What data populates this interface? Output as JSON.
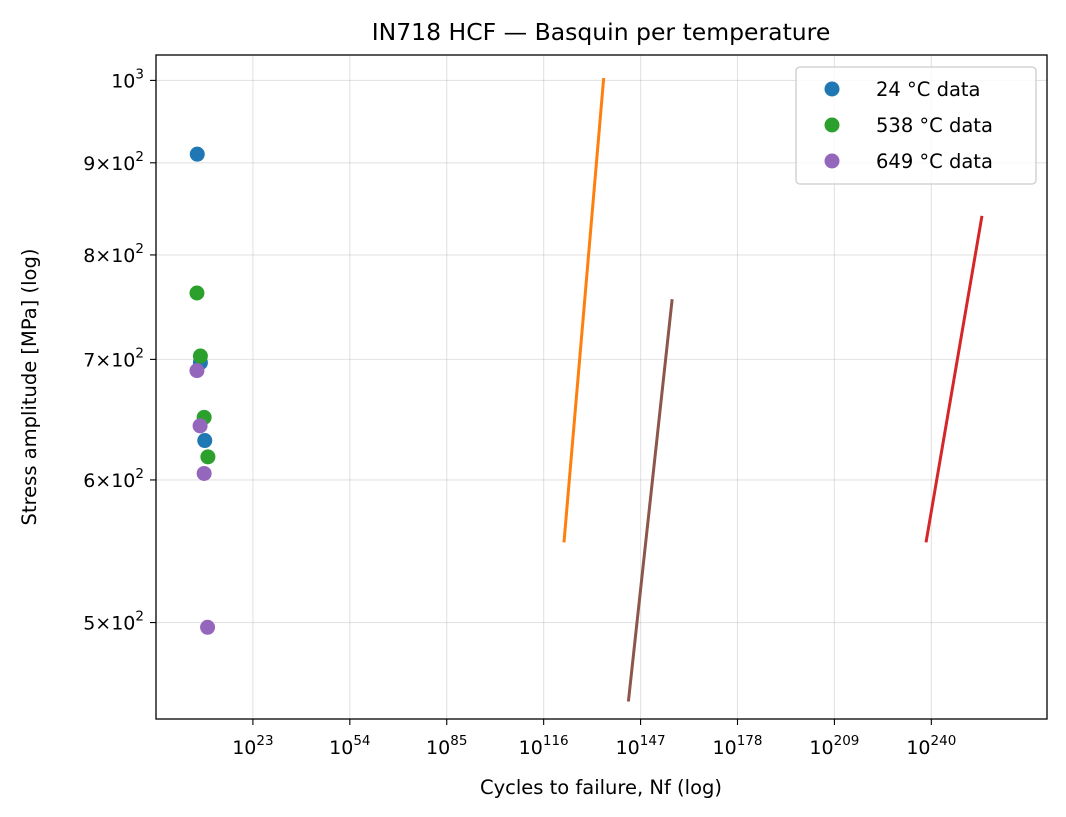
{
  "chart_data": {
    "type": "scatter",
    "title": "IN718 HCF — Basquin per temperature",
    "xlabel": "Cycles to failure, Nf (log)",
    "ylabel": "Stress amplitude [MPa] (log)",
    "x_scale": "log",
    "y_scale": "log",
    "xlim_log10": [
      -8,
      277
    ],
    "ylim": [
      442,
      1033
    ],
    "grid": true,
    "legend_position": "top-right",
    "x_tick_exponents": [
      "23",
      "54",
      "85",
      "116",
      "147",
      "178",
      "209",
      "240"
    ],
    "x_tick_base": "10",
    "y_ticks": [
      {
        "value": 500,
        "mantissa": "5",
        "exponent": "2"
      },
      {
        "value": 600,
        "mantissa": "6",
        "exponent": "2"
      },
      {
        "value": 700,
        "mantissa": "7",
        "exponent": "2"
      },
      {
        "value": 800,
        "mantissa": "8",
        "exponent": "2"
      },
      {
        "value": 900,
        "mantissa": "9",
        "exponent": "2"
      },
      {
        "value": 1000,
        "mantissa": "",
        "exponent": "3"
      }
    ],
    "series": [
      {
        "name": "24 °C data",
        "kind": "points",
        "color": "#1f77b4",
        "points": [
          [
            5.2,
            910
          ],
          [
            6.2,
            697
          ],
          [
            7.6,
            631
          ]
        ]
      },
      {
        "name": "538 °C data",
        "kind": "points",
        "color": "#2ca02c",
        "points": [
          [
            5.1,
            762
          ],
          [
            6.2,
            703
          ],
          [
            7.4,
            650
          ],
          [
            8.6,
            618
          ]
        ]
      },
      {
        "name": "649 °C data",
        "kind": "points",
        "color": "#9467bd",
        "points": [
          [
            5.1,
            690
          ],
          [
            6.1,
            643
          ],
          [
            7.4,
            605
          ],
          [
            8.5,
            497
          ]
        ]
      },
      {
        "kind": "line",
        "color": "#ff7f0e",
        "points": [
          [
            122.5,
            554
          ],
          [
            135.2,
            1003
          ]
        ]
      },
      {
        "kind": "line",
        "color": "#8c564b",
        "points": [
          [
            143.1,
            452
          ],
          [
            157.1,
            756
          ]
        ]
      },
      {
        "kind": "line",
        "color": "#d62728",
        "points": [
          [
            238.3,
            554
          ],
          [
            256.2,
            841
          ]
        ]
      }
    ]
  }
}
